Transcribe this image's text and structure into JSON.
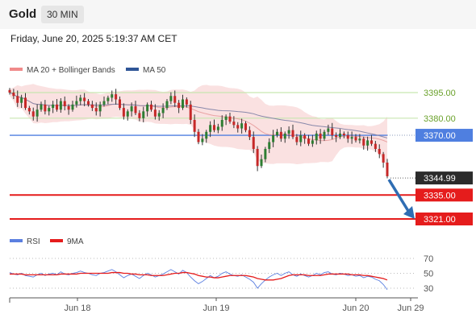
{
  "header": {
    "instrument": "Gold",
    "timeframe": "30 MIN",
    "timestamp": "Friday, June 20, 2025 5:19:37 AM CET"
  },
  "colors": {
    "bull": "#2e7d32",
    "bear": "#c62828",
    "bollinger": "#f6c9c9",
    "ma50": "#8888aa",
    "resistance_line": "#c8e6b0",
    "pivot_line": "#4f7fe0",
    "support_line": "#e51c1c",
    "arrow": "#2f6db3",
    "rsi": "#5b7fe0",
    "rsi_ma": "#e51c1c"
  },
  "chart_data": [
    {
      "type": "candlestick",
      "legend": [
        {
          "label": "MA 20 + Bollinger Bands",
          "color": "#f08a8a"
        },
        {
          "label": "MA 50",
          "color": "#2f5597"
        }
      ],
      "ylim": [
        3318,
        3402
      ],
      "x_ticks": [
        "Jun 18",
        "Jun 19",
        "Jun 20",
        "Jun 29"
      ],
      "levels": [
        {
          "label": "3395.00",
          "value": 3395.0,
          "kind": "resistance"
        },
        {
          "label": "3380.00",
          "value": 3380.0,
          "kind": "resistance"
        },
        {
          "label": "3370.00",
          "value": 3370.0,
          "kind": "pivot"
        },
        {
          "label": "3344.99",
          "value": 3344.99,
          "kind": "current"
        },
        {
          "label": "3335.00",
          "value": 3335.0,
          "kind": "support"
        },
        {
          "label": "3321.00",
          "value": 3321.0,
          "kind": "support"
        }
      ],
      "projection": {
        "from": 3344.99,
        "to": 3321.0
      },
      "closes": [
        3395,
        3393,
        3389,
        3392,
        3386,
        3384,
        3381,
        3385,
        3388,
        3384,
        3386,
        3388,
        3385,
        3390,
        3387,
        3385,
        3388,
        3390,
        3392,
        3390,
        3388,
        3386,
        3384,
        3388,
        3390,
        3392,
        3394,
        3391,
        3386,
        3381,
        3384,
        3387,
        3383,
        3380,
        3384,
        3388,
        3385,
        3381,
        3383,
        3386,
        3390,
        3393,
        3389,
        3386,
        3391,
        3388,
        3379,
        3372,
        3366,
        3368,
        3372,
        3376,
        3373,
        3375,
        3379,
        3381,
        3378,
        3376,
        3374,
        3377,
        3373,
        3369,
        3362,
        3352,
        3356,
        3362,
        3366,
        3370,
        3372,
        3368,
        3371,
        3373,
        3369,
        3366,
        3370,
        3368,
        3365,
        3367,
        3371,
        3368,
        3372,
        3374,
        3370,
        3369,
        3371,
        3370,
        3368,
        3369,
        3367,
        3368,
        3364,
        3367,
        3365,
        3362,
        3359,
        3354,
        3346
      ]
    },
    {
      "type": "line",
      "legend": [
        {
          "label": "RSI",
          "color": "#5b7fe0"
        },
        {
          "label": "9MA",
          "color": "#e51c1c"
        }
      ],
      "ylim": [
        20,
        78
      ],
      "y_ticks": [
        70,
        50,
        30
      ],
      "series": [
        {
          "name": "RSI",
          "values": [
            51,
            49,
            48,
            50,
            47,
            46,
            45,
            48,
            50,
            47,
            49,
            50,
            48,
            52,
            49,
            48,
            50,
            51,
            53,
            51,
            50,
            48,
            47,
            50,
            51,
            53,
            55,
            52,
            48,
            44,
            47,
            49,
            46,
            43,
            47,
            50,
            48,
            45,
            47,
            49,
            52,
            55,
            52,
            49,
            54,
            51,
            45,
            40,
            36,
            39,
            43,
            47,
            44,
            46,
            50,
            52,
            49,
            47,
            46,
            48,
            45,
            42,
            38,
            30,
            36,
            41,
            45,
            48,
            50,
            47,
            50,
            52,
            48,
            46,
            49,
            47,
            45,
            47,
            50,
            48,
            51,
            52,
            49,
            48,
            50,
            49,
            47,
            48,
            46,
            47,
            44,
            46,
            45,
            42,
            40,
            35,
            28
          ]
        },
        {
          "name": "9MA",
          "values": [
            49,
            49,
            49,
            49,
            48,
            48,
            48,
            48,
            48,
            48,
            48,
            48,
            48,
            49,
            49,
            49,
            49,
            49,
            50,
            50,
            50,
            50,
            50,
            50,
            50,
            50,
            51,
            51,
            51,
            50,
            50,
            49,
            49,
            48,
            48,
            48,
            47,
            47,
            47,
            47,
            48,
            49,
            50,
            50,
            51,
            51,
            50,
            49,
            47,
            46,
            45,
            45,
            44,
            44,
            45,
            46,
            47,
            47,
            47,
            47,
            47,
            46,
            45,
            43,
            42,
            41,
            41,
            41,
            42,
            43,
            45,
            47,
            48,
            48,
            48,
            48,
            47,
            47,
            47,
            47,
            48,
            49,
            49,
            49,
            49,
            49,
            49,
            48,
            48,
            48,
            47,
            47,
            46,
            45,
            44,
            43,
            41
          ]
        }
      ]
    }
  ]
}
